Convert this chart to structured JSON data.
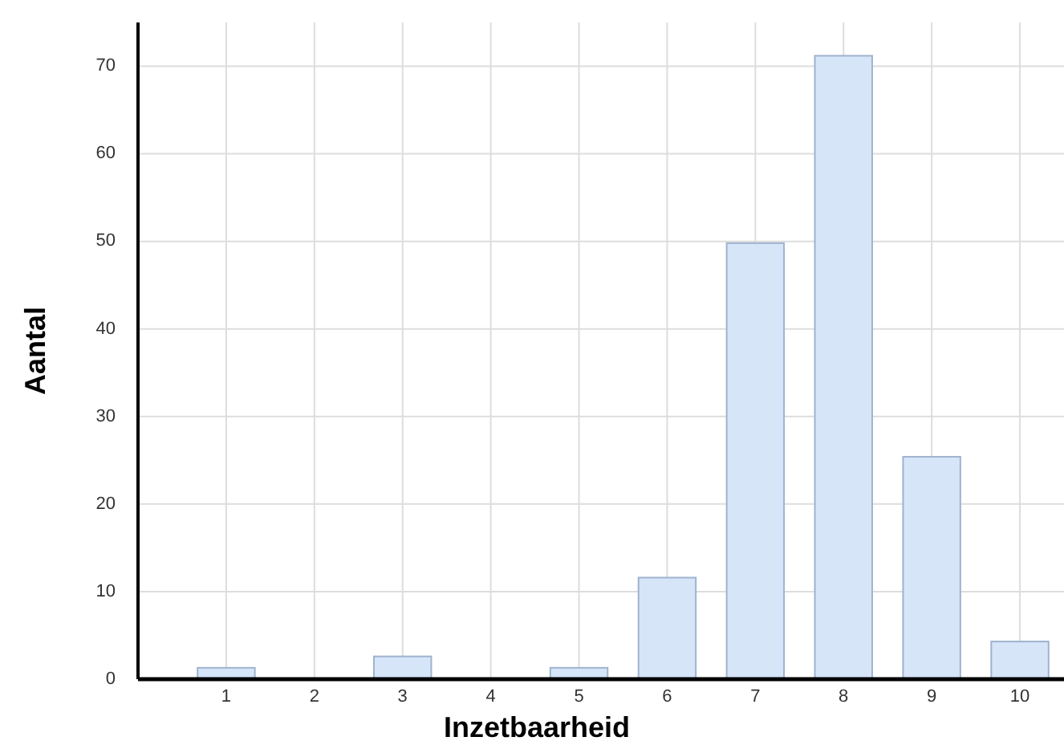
{
  "chart_data": {
    "type": "bar",
    "xlabel": "Inzetbaarheid",
    "ylabel": "Aantal",
    "categories": [
      "1",
      "2",
      "3",
      "4",
      "5",
      "6",
      "7",
      "8",
      "9",
      "10"
    ],
    "values": [
      1.3,
      0,
      2.6,
      0,
      1.3,
      11.6,
      49.8,
      71.2,
      25.4,
      4.3
    ],
    "color": "#d6e5f8",
    "ylim": [
      0,
      75
    ],
    "yticks": [
      0,
      10,
      20,
      30,
      40,
      50,
      60,
      70
    ],
    "grid": true
  }
}
